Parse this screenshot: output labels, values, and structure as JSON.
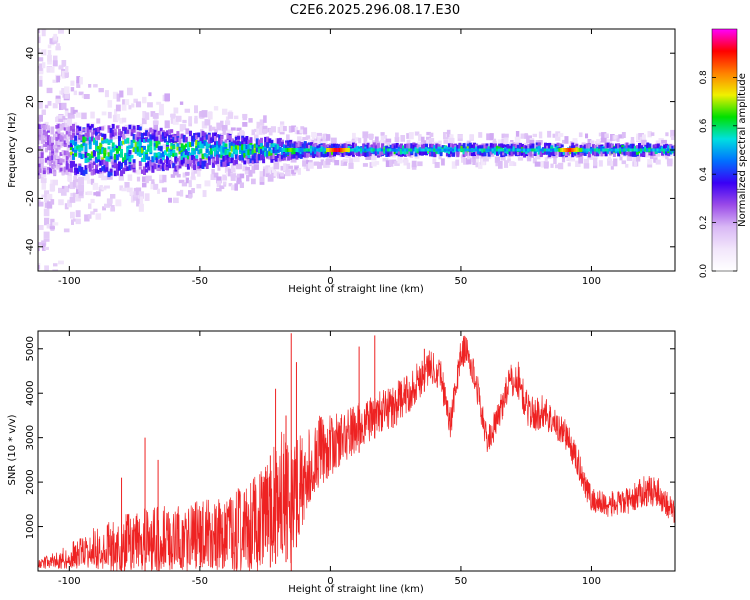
{
  "title": "C2E6.2025.296.08.17.E30",
  "colors": {
    "background": "#ffffff",
    "axis": "#000000",
    "snr_line": "#ee2222",
    "colormap": [
      "#ffffff",
      "#f2e6fb",
      "#d9b8f5",
      "#9b4be8",
      "#3a00f5",
      "#0070ff",
      "#00e0e0",
      "#00e000",
      "#f0f000",
      "#ff8000",
      "#ff0000",
      "#ff00ff"
    ]
  },
  "chart_data": [
    {
      "type": "heatmap",
      "name": "spectrogram",
      "xlabel": "Height of straight line (km)",
      "ylabel": "Frequency (Hz)",
      "xlim": [
        -112,
        132
      ],
      "ylim": [
        -50,
        50
      ],
      "xticks": [
        -100,
        -50,
        0,
        50,
        100
      ],
      "xtick_labels": [
        "-100",
        "-50",
        "0",
        "50",
        "100"
      ],
      "yticks": [
        -40,
        -20,
        0,
        20,
        40
      ],
      "ytick_labels": [
        "-40",
        "-20",
        "0",
        "20",
        "40"
      ],
      "band_center_hz": 0,
      "band_halfwidth_hz": [
        {
          "x": -112,
          "hz": 45
        },
        {
          "x": -100,
          "hz": 12
        },
        {
          "x": -60,
          "hz": 8
        },
        {
          "x": -20,
          "hz": 4
        },
        {
          "x": -5,
          "hz": 2
        },
        {
          "x": 132,
          "hz": 2
        }
      ],
      "hotspots": [
        {
          "x": 3,
          "amplitude": 0.95
        },
        {
          "x": 92,
          "amplitude": 0.9
        },
        {
          "x": -15,
          "amplitude": 0.7
        }
      ],
      "colorbar": {
        "label": "Normalized spectral amplitude",
        "ticks": [
          0.0,
          0.2,
          0.4,
          0.6,
          0.8
        ],
        "tick_labels": [
          "0.0",
          "0.2",
          "0.4",
          "0.6",
          "0.8"
        ],
        "range": [
          0,
          1
        ]
      }
    },
    {
      "type": "line",
      "name": "snr",
      "xlabel": "Height of straight line (km)",
      "ylabel": "SNR (10 * v/v)",
      "xlim": [
        -112,
        132
      ],
      "ylim": [
        0,
        5400
      ],
      "xticks": [
        -100,
        -50,
        0,
        50,
        100
      ],
      "xtick_labels": [
        "-100",
        "-50",
        "0",
        "50",
        "100"
      ],
      "yticks": [
        1000,
        2000,
        3000,
        4000,
        5000
      ],
      "ytick_labels": [
        "1000",
        "2000",
        "3000",
        "4000",
        "5000"
      ],
      "envelope": {
        "x": [
          -112,
          -100,
          -90,
          -80,
          -70,
          -60,
          -50,
          -40,
          -30,
          -25,
          -20,
          -17,
          -15,
          -12,
          -8,
          -4,
          0,
          5,
          10,
          15,
          20,
          25,
          30,
          35,
          38,
          42,
          46,
          50,
          52,
          56,
          60,
          64,
          68,
          72,
          75,
          78,
          82,
          86,
          90,
          95,
          100,
          105,
          110,
          115,
          120,
          125,
          132
        ],
        "mid": [
          150,
          350,
          550,
          650,
          750,
          800,
          850,
          900,
          1050,
          1300,
          1700,
          1900,
          1500,
          2000,
          2400,
          2700,
          2800,
          3000,
          3200,
          3400,
          3600,
          3750,
          4000,
          4400,
          4600,
          4500,
          3300,
          4900,
          5000,
          4200,
          2900,
          3400,
          4200,
          4300,
          3700,
          3500,
          3600,
          3300,
          3100,
          2400,
          1600,
          1500,
          1500,
          1600,
          1800,
          1800,
          1300
        ],
        "spread": [
          100,
          300,
          500,
          700,
          800,
          800,
          850,
          900,
          1100,
          1300,
          1500,
          1700,
          1500,
          1200,
          900,
          800,
          700,
          600,
          600,
          500,
          500,
          500,
          450,
          450,
          400,
          400,
          350,
          350,
          350,
          350,
          300,
          350,
          400,
          450,
          400,
          400,
          400,
          350,
          350,
          350,
          300,
          300,
          300,
          300,
          350,
          350,
          300
        ],
        "spikes": [
          {
            "x": -71,
            "y": 3000
          },
          {
            "x": -66,
            "y": 2500
          },
          {
            "x": -80,
            "y": 2100
          },
          {
            "x": -23,
            "y": 2600
          },
          {
            "x": -21,
            "y": 4100
          },
          {
            "x": -17,
            "y": 3500
          },
          {
            "x": -15,
            "y": 5350
          },
          {
            "x": -13,
            "y": 4700
          },
          {
            "x": 17,
            "y": 5300
          },
          {
            "x": 11,
            "y": 5050
          },
          {
            "x": 24,
            "y": 3600
          },
          {
            "x": 51,
            "y": 5250
          },
          {
            "x": 36,
            "y": 5000
          }
        ]
      }
    }
  ]
}
